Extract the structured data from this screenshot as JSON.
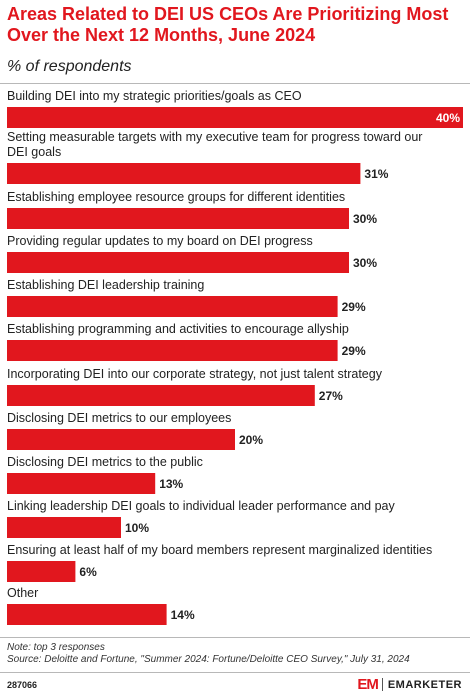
{
  "chart_data": {
    "type": "bar",
    "orientation": "horizontal",
    "title": "Areas Related to DEI US CEOs Are Prioritizing Most Over the Next 12 Months, June 2024",
    "subtitle": "% of respondents",
    "categories": [
      "Building DEI into my strategic priorities/goals as CEO",
      "Setting measurable targets with my executive team for progress toward our DEI goals",
      "Establishing employee resource groups for different identities",
      "Providing regular updates to my board on DEI progress",
      "Establishing DEI leadership training",
      "Establishing programming and activities to encourage allyship",
      "Incorporating DEI into our corporate strategy, not just talent strategy",
      "Disclosing DEI metrics to our employees",
      "Disclosing DEI metrics to the public",
      "Linking leadership DEI goals to individual leader performance and pay",
      "Ensuring at least half of my board members represent marginalized identities",
      "Other"
    ],
    "values": [
      40,
      31,
      30,
      30,
      29,
      29,
      27,
      20,
      13,
      10,
      6,
      14
    ],
    "value_labels": [
      "40%",
      "31%",
      "30%",
      "30%",
      "29%",
      "29%",
      "27%",
      "20%",
      "13%",
      "10%",
      "6%",
      "14%"
    ],
    "xlim": [
      0,
      40
    ],
    "bar_color": "#e1171e",
    "grid": false,
    "legend": "none"
  },
  "notes": {
    "note": "Note: top 3 responses",
    "source": "Source: Deloitte and Fortune, \"Summer 2024: Fortune/Deloitte CEO Survey,\" July 31, 2024"
  },
  "footer": {
    "chart_id": "287066",
    "brand_mark": "EM",
    "brand_name": "EMARKETER"
  }
}
